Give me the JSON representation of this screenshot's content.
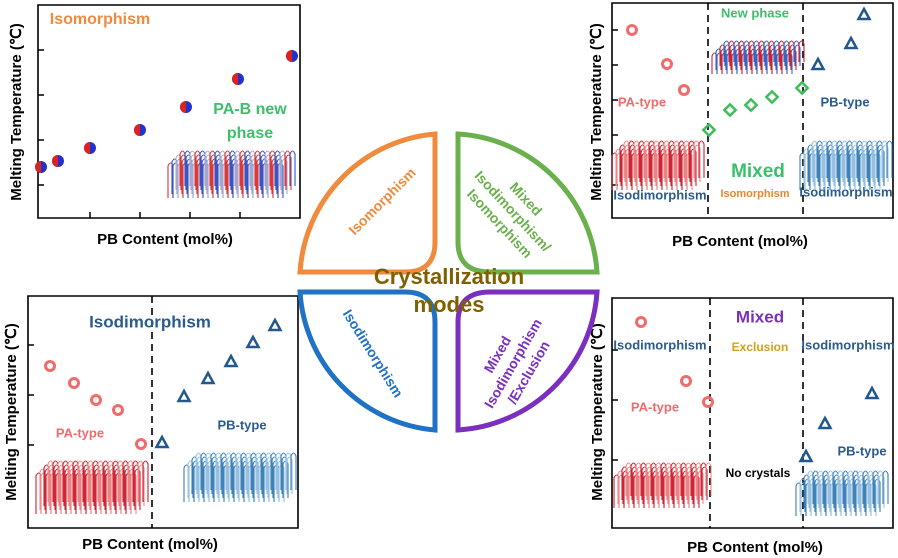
{
  "panels": [
    {
      "title": "Isomorphism",
      "annotation": [
        "PA-B new",
        "phase"
      ],
      "y_label": "Melting Temperature (℃)",
      "x_label": "PB Content (mol%)"
    },
    {
      "title": "Mixed",
      "new_phase": "New phase",
      "pa_type": "PA-type",
      "pb_type": "PB-type",
      "left": "Isodimorphism",
      "middle": "Isomorphism",
      "right": "Isodimorphism",
      "y_label": "Melting Temperature (℃)",
      "x_label": "PB Content (mol%)"
    },
    {
      "title": "Isodimorphism",
      "pa_type": "PA-type",
      "pb_type": "PB-type",
      "y_label": "Melting Temperature (℃)",
      "x_label": "PB Content (mol%)"
    },
    {
      "title": "Mixed",
      "left": "Isodimorphism",
      "middle": "Exclusion",
      "right": "Isodimorphism",
      "pa_type": "PA-type",
      "pb_type": "PB-type",
      "no_crystals": "No crystals",
      "y_label": "Melting Temperature (℃)",
      "x_label": "PB Content (mol%)"
    }
  ],
  "center": {
    "title": [
      "Crystallization",
      "modes"
    ],
    "modes": [
      [
        "Isomorphism"
      ],
      [
        "Mixed",
        "Isodimorphism/",
        "Isomorphism"
      ],
      [
        "Isodimorphism"
      ],
      [
        "Mixed",
        "Isodimorphism",
        "/Exclusion"
      ]
    ]
  }
}
